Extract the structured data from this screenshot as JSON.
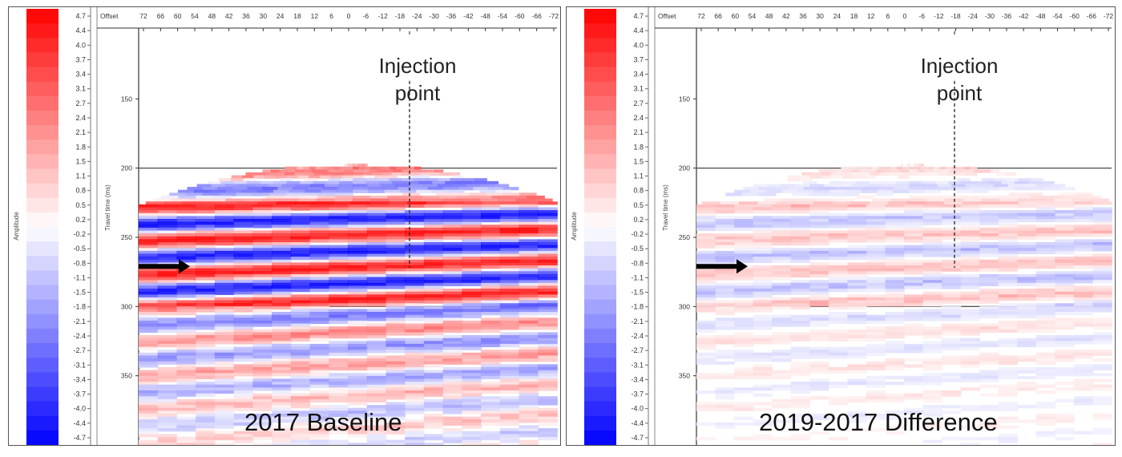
{
  "colorbar": {
    "title": "Amplitude",
    "ticks": [
      "4.7",
      "4.4",
      "4.0",
      "3.7",
      "3.4",
      "3.1",
      "2.7",
      "2.4",
      "2.1",
      "1.8",
      "1.5",
      "1.1",
      "0.8",
      "0.5",
      "0.2",
      "-0.2",
      "-0.5",
      "-0.8",
      "-1.1",
      "-1.5",
      "-1.8",
      "-2.1",
      "-2.4",
      "-2.7",
      "-3.1",
      "-3.4",
      "-3.7",
      "-4.0",
      "-4.4",
      "-4.7"
    ]
  },
  "axes": {
    "x_header": "Offset",
    "x_ticks": [
      "72",
      "66",
      "60",
      "54",
      "48",
      "42",
      "36",
      "30",
      "24",
      "18",
      "12",
      "6",
      "0",
      "-6",
      "-12",
      "-18",
      "-24",
      "-30",
      "-36",
      "-42",
      "-48",
      "-54",
      "-60",
      "-66",
      "-72"
    ],
    "y_label": "Travel time (ms)",
    "y_ticks": [
      "150",
      "200",
      "250",
      "300",
      "350"
    ]
  },
  "panels": [
    {
      "label": "2017 Baseline",
      "annotation": "Injection point",
      "annotation_line1": "Injection",
      "annotation_line2": "point",
      "intensity": 1.0
    },
    {
      "label": "2019-2017 Difference",
      "annotation": "Injection point",
      "annotation_line1": "Injection",
      "annotation_line2": "point",
      "intensity": 0.25
    }
  ],
  "colors": {
    "positive": "#ff0000",
    "negative": "#0000ff",
    "gridline": "#555555",
    "arrow": "#000000"
  }
}
